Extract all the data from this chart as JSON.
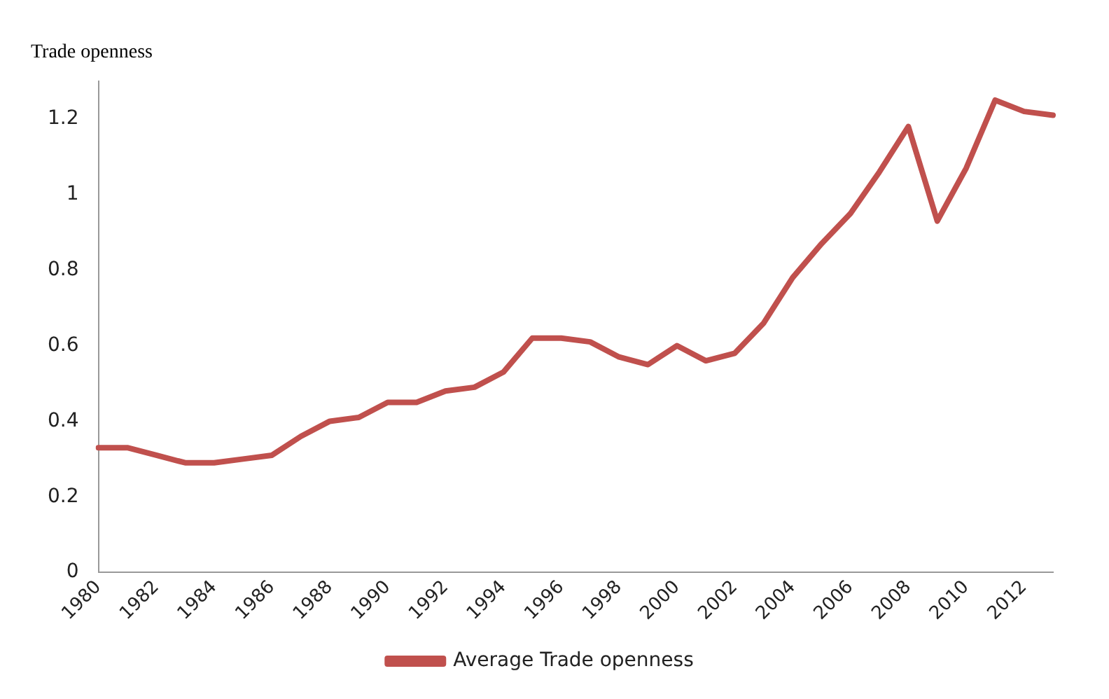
{
  "chart_data": {
    "type": "line",
    "ylabel": "Trade openness",
    "categories": [
      "1980",
      null,
      "1982",
      null,
      "1984",
      null,
      "1986",
      null,
      "1988",
      null,
      "1990",
      null,
      "1992",
      null,
      "1994",
      null,
      "1996",
      null,
      "1998",
      null,
      "2000",
      null,
      "2002",
      null,
      "2004",
      null,
      "2006",
      null,
      "2008",
      null,
      "2010",
      null,
      "2012",
      null
    ],
    "series": [
      {
        "name": "Average Trade openness",
        "color": "#c0504d",
        "values": [
          0.33,
          0.33,
          0.31,
          0.29,
          0.29,
          0.3,
          0.31,
          0.36,
          0.4,
          0.41,
          0.45,
          0.45,
          0.48,
          0.49,
          0.53,
          0.62,
          0.62,
          0.61,
          0.57,
          0.55,
          0.6,
          0.56,
          0.58,
          0.66,
          0.78,
          0.87,
          0.95,
          1.06,
          1.18,
          0.93,
          1.07,
          1.25,
          1.22,
          1.21
        ]
      }
    ],
    "ylim": [
      0,
      1.3
    ],
    "yticks": [
      0,
      0.2,
      0.4,
      0.6,
      0.8,
      1,
      1.2
    ],
    "grid": false,
    "legend": "bottom",
    "marker": "none",
    "line_style": "solid"
  }
}
